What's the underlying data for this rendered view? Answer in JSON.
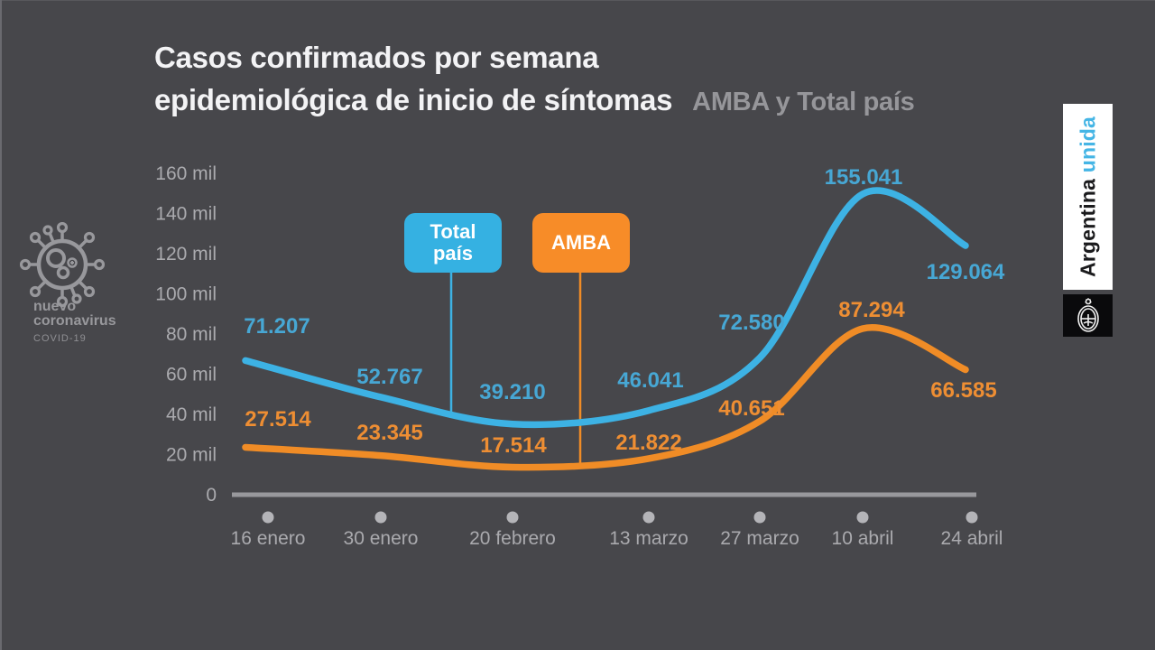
{
  "header": {
    "title_line1": "Casos confirmados por semana",
    "title_line2": "epidemiológica de inicio de síntomas",
    "subtitle": "AMBA y Total país"
  },
  "branding": {
    "virus_label": {
      "line1": "nuevo",
      "line2": "coronavirus",
      "line3": "COVID-19"
    },
    "banner": {
      "word1": "Argentina",
      "word2": "unida",
      "accent_color": "#45b5e5"
    }
  },
  "legend": {
    "total_pais": {
      "line1": "Total",
      "line2": "país",
      "color": "#35b1e2"
    },
    "amba": {
      "label": "AMBA",
      "color": "#f78c28"
    }
  },
  "colors": {
    "background": "#47474b",
    "axis": "#98989c",
    "tick_text": "#aaaaae",
    "title_text": "#f3f3f5",
    "subtitle_text": "#96969a"
  },
  "chart_data": {
    "type": "line",
    "categories": [
      "16 enero",
      "30 enero",
      "20 febrero",
      "13 marzo",
      "27 marzo",
      "10 abril",
      "24 abril"
    ],
    "y_tick_labels": [
      "160 mil",
      "140 mil",
      "120 mil",
      "100 mil",
      "80 mil",
      "60 mil",
      "40 mil",
      "20 mil",
      "0"
    ],
    "ylim": [
      0,
      160000
    ],
    "grid": false,
    "legend_position": "callout-boxes-above-lines",
    "series": [
      {
        "name": "Total país",
        "color": "#3db2e4",
        "label_color": "#47a7d4",
        "values": [
          71207,
          52767,
          39210,
          46041,
          72580,
          155041,
          129064
        ],
        "point_labels": [
          "71.207",
          "52.767",
          "39.210",
          "46.041",
          "72.580",
          "155.041",
          "129.064"
        ]
      },
      {
        "name": "AMBA",
        "color": "#f08c26",
        "label_color": "#ee8e33",
        "values": [
          27514,
          23345,
          17514,
          21822,
          40651,
          87294,
          66585
        ],
        "point_labels": [
          "27.514",
          "23.345",
          "17.514",
          "21.822",
          "40.651",
          "87.294",
          "66.585"
        ]
      }
    ]
  }
}
